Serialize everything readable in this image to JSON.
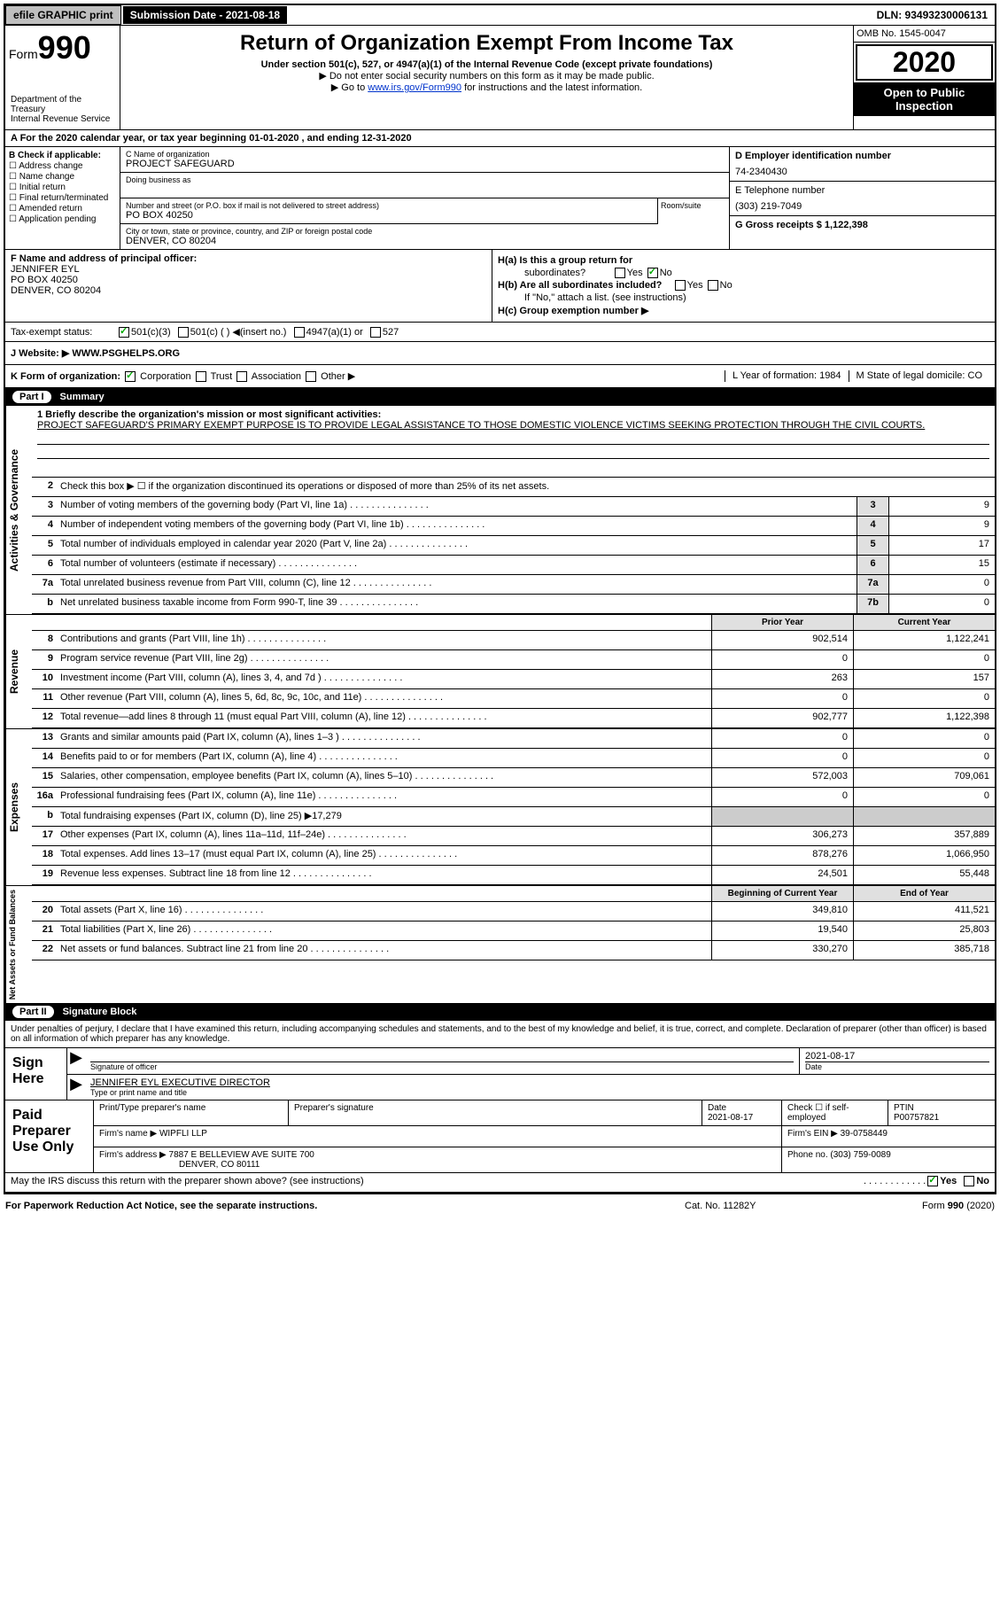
{
  "topbar": {
    "efile": "efile GRAPHIC print",
    "sub_label": "Submission Date - 2021-08-18",
    "dln": "DLN: 93493230006131"
  },
  "header": {
    "form_label": "Form",
    "form_num": "990",
    "title": "Return of Organization Exempt From Income Tax",
    "subtitle": "Under section 501(c), 527, or 4947(a)(1) of the Internal Revenue Code (except private foundations)",
    "note1": "▶ Do not enter social security numbers on this form as it may be made public.",
    "note2_pre": "▶ Go to ",
    "note2_link": "www.irs.gov/Form990",
    "note2_post": " for instructions and the latest information.",
    "dept": "Department of the Treasury\nInternal Revenue Service",
    "omb": "OMB No. 1545-0047",
    "year": "2020",
    "open": "Open to Public Inspection"
  },
  "period": "A For the 2020 calendar year, or tax year beginning 01-01-2020   , and ending 12-31-2020",
  "section_b": {
    "label": "B Check if applicable:",
    "items": [
      "Address change",
      "Name change",
      "Initial return",
      "Final return/terminated",
      "Amended return",
      "Application pending"
    ]
  },
  "section_c": {
    "name_lbl": "C Name of organization",
    "name_val": "PROJECT SAFEGUARD",
    "dba_lbl": "Doing business as",
    "addr_lbl": "Number and street (or P.O. box if mail is not delivered to street address)",
    "addr_val": "PO BOX 40250",
    "room_lbl": "Room/suite",
    "city_lbl": "City or town, state or province, country, and ZIP or foreign postal code",
    "city_val": "DENVER, CO  80204"
  },
  "section_d": {
    "ein_lbl": "D Employer identification number",
    "ein_val": "74-2340430",
    "phone_lbl": "E Telephone number",
    "phone_val": "(303) 219-7049",
    "gross_lbl": "G Gross receipts $ 1,122,398"
  },
  "section_f": {
    "lbl": "F  Name and address of principal officer:",
    "name": "JENNIFER EYL",
    "addr1": "PO BOX 40250",
    "addr2": "DENVER, CO  80204"
  },
  "section_h": {
    "ha": "H(a)  Is this a group return for",
    "ha2": "subordinates?",
    "hb": "H(b)  Are all subordinates included?",
    "hb_note": "If \"No,\" attach a list. (see instructions)",
    "hc": "H(c)  Group exemption number ▶",
    "yes": "Yes",
    "no": "No"
  },
  "tax_status": {
    "lbl": "Tax-exempt status:",
    "opts": [
      "501(c)(3)",
      "501(c) (  ) ◀(insert no.)",
      "4947(a)(1) or",
      "527"
    ]
  },
  "website": {
    "lbl": "J   Website: ▶",
    "val": "WWW.PSGHELPS.ORG"
  },
  "section_k": {
    "lbl": "K Form of organization:",
    "opts": [
      "Corporation",
      "Trust",
      "Association",
      "Other ▶"
    ],
    "l_lbl": "L Year of formation: 1984",
    "m_lbl": "M State of legal domicile: CO"
  },
  "part1": {
    "num": "Part I",
    "title": "Summary"
  },
  "mission": {
    "lbl": "1   Briefly describe the organization's mission or most significant activities:",
    "text": "PROJECT SAFEGUARD'S PRIMARY EXEMPT PURPOSE IS TO PROVIDE LEGAL ASSISTANCE TO THOSE DOMESTIC VIOLENCE VICTIMS SEEKING PROTECTION THROUGH THE CIVIL COURTS."
  },
  "lines_gov": [
    {
      "n": "2",
      "d": "Check this box ▶ ☐  if the organization discontinued its operations or disposed of more than 25% of its net assets."
    },
    {
      "n": "3",
      "d": "Number of voting members of the governing body (Part VI, line 1a)",
      "box": "3",
      "v": "9"
    },
    {
      "n": "4",
      "d": "Number of independent voting members of the governing body (Part VI, line 1b)",
      "box": "4",
      "v": "9"
    },
    {
      "n": "5",
      "d": "Total number of individuals employed in calendar year 2020 (Part V, line 2a)",
      "box": "5",
      "v": "17"
    },
    {
      "n": "6",
      "d": "Total number of volunteers (estimate if necessary)",
      "box": "6",
      "v": "15"
    },
    {
      "n": "7a",
      "d": "Total unrelated business revenue from Part VIII, column (C), line 12",
      "box": "7a",
      "v": "0"
    },
    {
      "n": "b",
      "d": "Net unrelated business taxable income from Form 990-T, line 39",
      "box": "7b",
      "v": "0"
    }
  ],
  "col_headers": {
    "prior": "Prior Year",
    "current": "Current Year"
  },
  "lines_rev": [
    {
      "n": "8",
      "d": "Contributions and grants (Part VIII, line 1h)",
      "p": "902,514",
      "c": "1,122,241"
    },
    {
      "n": "9",
      "d": "Program service revenue (Part VIII, line 2g)",
      "p": "0",
      "c": "0"
    },
    {
      "n": "10",
      "d": "Investment income (Part VIII, column (A), lines 3, 4, and 7d )",
      "p": "263",
      "c": "157"
    },
    {
      "n": "11",
      "d": "Other revenue (Part VIII, column (A), lines 5, 6d, 8c, 9c, 10c, and 11e)",
      "p": "0",
      "c": "0"
    },
    {
      "n": "12",
      "d": "Total revenue—add lines 8 through 11 (must equal Part VIII, column (A), line 12)",
      "p": "902,777",
      "c": "1,122,398"
    }
  ],
  "lines_exp": [
    {
      "n": "13",
      "d": "Grants and similar amounts paid (Part IX, column (A), lines 1–3 )",
      "p": "0",
      "c": "0"
    },
    {
      "n": "14",
      "d": "Benefits paid to or for members (Part IX, column (A), line 4)",
      "p": "0",
      "c": "0"
    },
    {
      "n": "15",
      "d": "Salaries, other compensation, employee benefits (Part IX, column (A), lines 5–10)",
      "p": "572,003",
      "c": "709,061"
    },
    {
      "n": "16a",
      "d": "Professional fundraising fees (Part IX, column (A), line 11e)",
      "p": "0",
      "c": "0"
    },
    {
      "n": "b",
      "d": "Total fundraising expenses (Part IX, column (D), line 25) ▶17,279",
      "gray": true
    },
    {
      "n": "17",
      "d": "Other expenses (Part IX, column (A), lines 11a–11d, 11f–24e)",
      "p": "306,273",
      "c": "357,889"
    },
    {
      "n": "18",
      "d": "Total expenses. Add lines 13–17 (must equal Part IX, column (A), line 25)",
      "p": "878,276",
      "c": "1,066,950"
    },
    {
      "n": "19",
      "d": "Revenue less expenses. Subtract line 18 from line 12",
      "p": "24,501",
      "c": "55,448"
    }
  ],
  "col_headers2": {
    "begin": "Beginning of Current Year",
    "end": "End of Year"
  },
  "lines_net": [
    {
      "n": "20",
      "d": "Total assets (Part X, line 16)",
      "p": "349,810",
      "c": "411,521"
    },
    {
      "n": "21",
      "d": "Total liabilities (Part X, line 26)",
      "p": "19,540",
      "c": "25,803"
    },
    {
      "n": "22",
      "d": "Net assets or fund balances. Subtract line 21 from line 20",
      "p": "330,270",
      "c": "385,718"
    }
  ],
  "vtabs": {
    "gov": "Activities & Governance",
    "rev": "Revenue",
    "exp": "Expenses",
    "net": "Net Assets or Fund Balances"
  },
  "part2": {
    "num": "Part II",
    "title": "Signature Block"
  },
  "sig_text": "Under penalties of perjury, I declare that I have examined this return, including accompanying schedules and statements, and to the best of my knowledge and belief, it is true, correct, and complete. Declaration of preparer (other than officer) is based on all information of which preparer has any knowledge.",
  "sign_here": "Sign Here",
  "sig": {
    "officer_lbl": "Signature of officer",
    "date_lbl": "Date",
    "date_val": "2021-08-17",
    "name": "JENNIFER EYL  EXECUTIVE DIRECTOR",
    "name_lbl": "Type or print name and title"
  },
  "paid": "Paid Preparer Use Only",
  "prep": {
    "name_lbl": "Print/Type preparer's name",
    "sig_lbl": "Preparer's signature",
    "date_lbl": "Date",
    "date_val": "2021-08-17",
    "check_lbl": "Check ☐ if self-employed",
    "ptin_lbl": "PTIN",
    "ptin_val": "P00757821",
    "firm_lbl": "Firm's name    ▶",
    "firm_val": "WIPFLI LLP",
    "ein_lbl": "Firm's EIN ▶",
    "ein_val": "39-0758449",
    "addr_lbl": "Firm's address ▶",
    "addr_val": "7887 E BELLEVIEW AVE SUITE 700",
    "addr_val2": "DENVER, CO  80111",
    "phone_lbl": "Phone no.",
    "phone_val": "(303) 759-0089"
  },
  "discuss": "May the IRS discuss this return with the preparer shown above? (see instructions)",
  "footer": {
    "left": "For Paperwork Reduction Act Notice, see the separate instructions.",
    "mid": "Cat. No. 11282Y",
    "right": "Form 990 (2020)"
  }
}
